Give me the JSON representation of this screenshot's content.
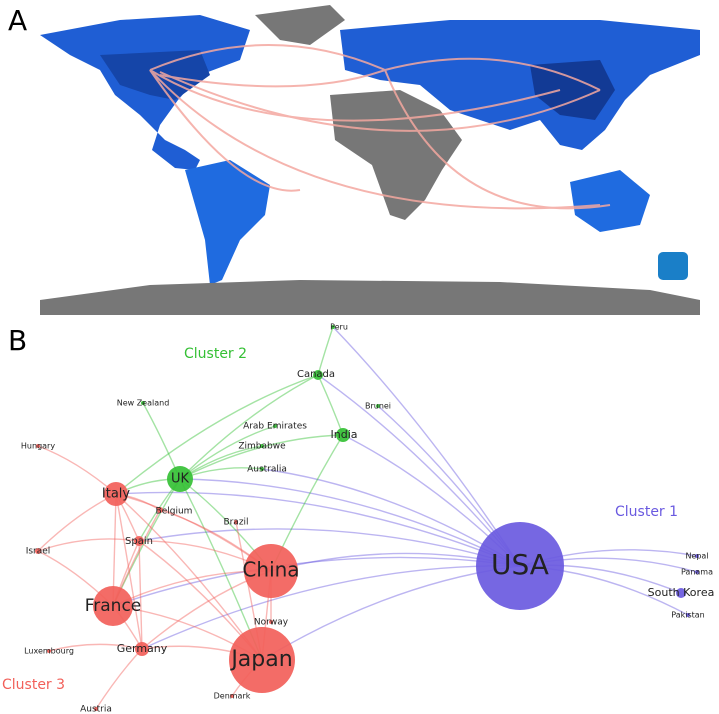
{
  "panels": {
    "a": {
      "label": "A"
    },
    "b": {
      "label": "B"
    }
  },
  "clusters": [
    {
      "label": "Cluster 1",
      "color": "#6a5ae0"
    },
    {
      "label": "Cluster 2",
      "color": "#35c035"
    },
    {
      "label": "Cluster 3",
      "color": "#f2605a"
    }
  ],
  "nodes": [
    {
      "label": "Peru",
      "cluster": 1
    },
    {
      "label": "Canada",
      "cluster": 1
    },
    {
      "label": "Brunei",
      "cluster": 1
    },
    {
      "label": "New Zealand",
      "cluster": 1
    },
    {
      "label": "Arab Emirates",
      "cluster": 1
    },
    {
      "label": "India",
      "cluster": 1
    },
    {
      "label": "Hungary",
      "cluster": 2
    },
    {
      "label": "Zimbabwe",
      "cluster": 1
    },
    {
      "label": "Australia",
      "cluster": 1
    },
    {
      "label": "UK",
      "cluster": 1
    },
    {
      "label": "Italy",
      "cluster": 2
    },
    {
      "label": "Belgium",
      "cluster": 2
    },
    {
      "label": "Brazil",
      "cluster": 2
    },
    {
      "label": "Spain",
      "cluster": 2
    },
    {
      "label": "Israel",
      "cluster": 2
    },
    {
      "label": "USA",
      "cluster": 0
    },
    {
      "label": "China",
      "cluster": 2
    },
    {
      "label": "France",
      "cluster": 2
    },
    {
      "label": "Nepal",
      "cluster": 0
    },
    {
      "label": "Panama",
      "cluster": 0
    },
    {
      "label": "South Korea",
      "cluster": 0
    },
    {
      "label": "Pakistan",
      "cluster": 0
    },
    {
      "label": "Norway",
      "cluster": 2
    },
    {
      "label": "Luxembourg",
      "cluster": 2
    },
    {
      "label": "Germany",
      "cluster": 2
    },
    {
      "label": "Japan",
      "cluster": 2
    },
    {
      "label": "Denmark",
      "cluster": 2
    },
    {
      "label": "Austria",
      "cluster": 2
    }
  ]
}
